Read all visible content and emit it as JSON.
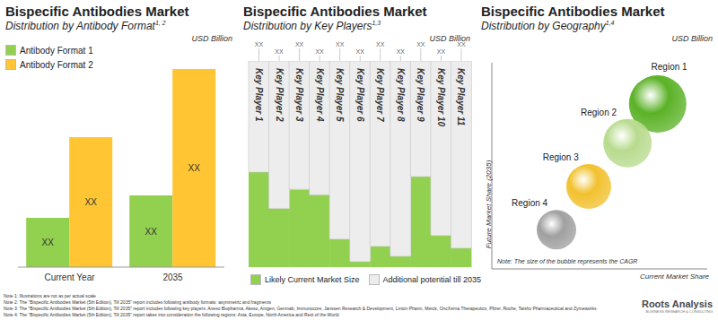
{
  "chart_data": [
    {
      "type": "bar",
      "title": "Bispecific Antibodies Market",
      "subtitle": "Distribution by Antibody Format",
      "subtitle_superscript": "1, 2",
      "unit_label": "USD Billion",
      "categories": [
        "Current Year",
        "2035"
      ],
      "series": [
        {
          "name": "Antibody Format 1",
          "color": "#92D050",
          "values": [
            55,
            80
          ],
          "value_labels": [
            "XX",
            "XX"
          ]
        },
        {
          "name": "Antibody Format 2",
          "color": "#FFC533",
          "values": [
            145,
            221
          ],
          "value_labels": [
            "XX",
            "XX"
          ]
        }
      ],
      "ylim": [
        0,
        230
      ],
      "tick_labels": "x",
      "data_labels": true,
      "legend": "top-left",
      "grid": false
    },
    {
      "type": "bar",
      "title": "Bispecific Antibodies Market",
      "subtitle": "Distribution by Key Players",
      "subtitle_superscript": "1,3",
      "unit_label": "USD Billion",
      "stacked": true,
      "categories": [
        "Key Player 1",
        "Key Player 2",
        "Key Player 3",
        "Key Player 4",
        "Key Player 5",
        "Key Player 6",
        "Key Player 7",
        "Key Player 8",
        "Key Player 9",
        "Key Player 10",
        "Key Player 11"
      ],
      "series": [
        {
          "name": "Likely Current Market Size",
          "color": "#92D050",
          "values": [
            105,
            65,
            86,
            80,
            31,
            6,
            23,
            12,
            100,
            35,
            21
          ]
        },
        {
          "name": "Additional potential till 2035",
          "color": "#EDEDED",
          "values": [
            123,
            163,
            142,
            148,
            197,
            222,
            205,
            216,
            128,
            193,
            207
          ],
          "value_labels": [
            "XX",
            "XX",
            "XX",
            "XX",
            "XX",
            "XX",
            "XX",
            "XX",
            "XX",
            "XX",
            "XX"
          ]
        }
      ],
      "ylim": [
        0,
        228
      ],
      "tick_labels": false,
      "data_labels": true,
      "legend": "bottom",
      "grid": false
    },
    {
      "type": "scatter",
      "title": "Bispecific Antibodies Market",
      "subtitle": "Distribution by Geography",
      "subtitle_superscript": "1,4",
      "unit_label": "USD Billion",
      "x_label": "Current Market Share",
      "y_label": "Future Market Share (2035)",
      "note": "Note: The size of the bubble represents the CAGR",
      "categories": [
        "Region 1",
        "Region 2",
        "Region 3",
        "Region 4"
      ],
      "x": [
        77,
        63,
        45,
        30
      ],
      "values": [
        80,
        61,
        40,
        19
      ],
      "sizes": [
        32,
        27,
        25,
        22
      ],
      "colors": [
        "#5BB226",
        "#B8DB8E",
        "#F2C12E",
        "#A0A0A0"
      ],
      "xlim": [
        0,
        100
      ],
      "ylim": [
        0,
        100
      ],
      "tick_labels": false,
      "grid": false
    }
  ],
  "notes": [
    "Note 1: Illustrations are not as per actual scale",
    "Note 2: The \"Bispecific Antibodies Market (5th Edition), Till 2035\" report includes following antibody formats: asymmetric and fragments",
    "Note 3: The \"Bispecific Antibodies Market (5th Edition), Till 2035\" report includes following key players: Anexo Biopharma, Akeso, Amgen, Genmab, Immunocore, Janssen Research & Development, Linton Pharm, Merck, OncXerna Therapeutics, Pfizer, Roche, Taisho Pharmaceutical and Zymeworks",
    "Note 4: The \"Bispecific Antibodies Market (5th Edition), Till 2035\" report takes into consideration the following regions: Asia, Europe, North America and Rest of the World"
  ],
  "logo": {
    "name": "Roots Analysis",
    "tagline": "BUSINESS RESEARCH & CONSULTING"
  }
}
